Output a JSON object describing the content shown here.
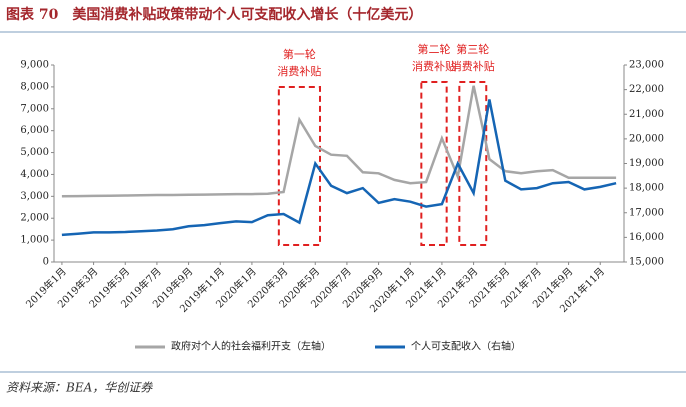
{
  "chart_data": {
    "type": "line",
    "title": "图表 70　美国消费补贴政策带动个人可支配收入增长（十亿美元）",
    "source": "资料来源：BEA，华创证券",
    "categories": [
      "2019年1月",
      null,
      "2019年3月",
      null,
      "2019年5月",
      null,
      "2019年7月",
      null,
      "2019年9月",
      null,
      "2019年11月",
      null,
      "2020年1月",
      null,
      "2020年3月",
      null,
      "2020年5月",
      null,
      "2020年7月",
      null,
      "2020年9月",
      null,
      "2020年11月",
      null,
      "2021年1月",
      null,
      "2021年3月",
      null,
      "2021年5月",
      null,
      "2021年7月",
      null,
      "2021年9月",
      null,
      "2021年11月",
      null
    ],
    "series": [
      {
        "name": "政府对个人的社会福利开支（左轴）",
        "color": "#a6a6a6",
        "axis": "y",
        "values": [
          3000,
          3010,
          3020,
          3030,
          3040,
          3050,
          3060,
          3060,
          3070,
          3080,
          3090,
          3100,
          3100,
          3120,
          3200,
          6500,
          5300,
          4900,
          4850,
          4100,
          4050,
          3750,
          3600,
          3650,
          5650,
          3900,
          8050,
          4700,
          4150,
          4050,
          4150,
          4200,
          3850,
          3850,
          3850,
          3850
        ]
      },
      {
        "name": "个人可支配收入（右轴）",
        "color": "#1565b4",
        "axis": "y2",
        "values": [
          16100,
          16150,
          16200,
          16200,
          16220,
          16250,
          16280,
          16330,
          16450,
          16500,
          16580,
          16650,
          16620,
          16900,
          16950,
          16600,
          19000,
          18100,
          17800,
          18000,
          17400,
          17550,
          17450,
          17250,
          17350,
          19000,
          17800,
          21600,
          18300,
          17950,
          18000,
          18200,
          18250,
          17950,
          18050,
          18200
        ]
      }
    ],
    "annotations": [
      {
        "lines": [
          "第一轮",
          "消费补贴"
        ]
      },
      {
        "lines": [
          "第二轮",
          "消费补贴"
        ]
      },
      {
        "lines": [
          "第三轮",
          "消费补贴"
        ]
      }
    ],
    "ylim": [
      0,
      9000
    ],
    "yticks": [
      0,
      {
        "value": 1000,
        "label": "1,000"
      },
      {
        "value": 2000,
        "label": "2,000"
      },
      {
        "value": 3000,
        "label": "3,000"
      },
      {
        "value": 4000,
        "label": "4,000"
      },
      {
        "value": 5000,
        "label": "5,000"
      },
      {
        "value": 6000,
        "label": "6,000"
      },
      {
        "value": 7000,
        "label": "7,000"
      },
      {
        "value": 8000,
        "label": "8,000"
      },
      {
        "value": 9000,
        "label": "9,000"
      }
    ],
    "y2lim": [
      15000,
      23000
    ],
    "y2ticks": [
      {
        "value": 15000,
        "label": "15,000"
      },
      {
        "value": 16000,
        "label": "16,000"
      },
      {
        "value": 17000,
        "label": "17,000"
      },
      {
        "value": 18000,
        "label": "18,000"
      },
      {
        "value": 19000,
        "label": "19,000"
      },
      {
        "value": 20000,
        "label": "20,000"
      },
      {
        "value": 21000,
        "label": "21,000"
      },
      {
        "value": 22000,
        "label": "22,000"
      },
      {
        "value": 23000,
        "label": "23,000"
      }
    ],
    "grid": false
  }
}
